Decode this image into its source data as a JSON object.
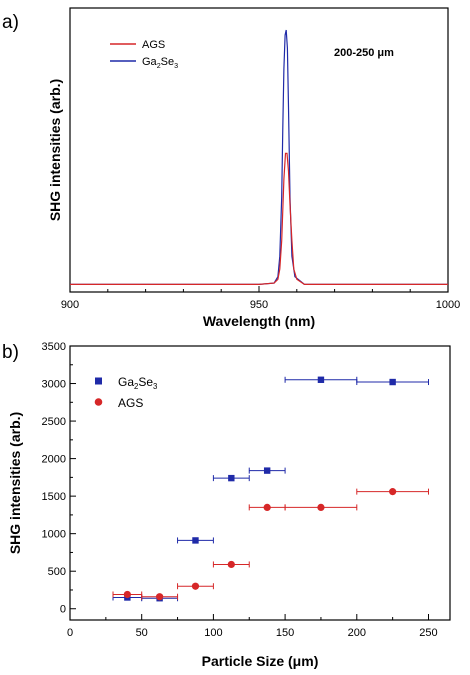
{
  "chart_data": [
    {
      "panel": "a)",
      "type": "line",
      "xlabel": "Wavelength (nm)",
      "ylabel": "SHG intensities (arb.)",
      "xlim": [
        900,
        1000
      ],
      "xticks": [
        "900",
        "950",
        "1000"
      ],
      "yticks": [],
      "annotation": "200-250 μm",
      "legend_position": "top-left",
      "colors": {
        "AGS": "#d62728",
        "Ga2Se3": "#1f2aa8"
      },
      "series": [
        {
          "name": "AGS",
          "legend_parts": [
            "AGS"
          ],
          "x": [
            900,
            950,
            954,
            955,
            955.5,
            956,
            956.3,
            956.6,
            957,
            957.4,
            957.8,
            958.2,
            958.7,
            959.2,
            960,
            962,
            1000
          ],
          "y": [
            0.01,
            0.01,
            0.015,
            0.03,
            0.07,
            0.18,
            0.3,
            0.42,
            0.52,
            0.52,
            0.45,
            0.32,
            0.18,
            0.07,
            0.03,
            0.01,
            0.01
          ]
        },
        {
          "name": "Ga2Se3",
          "legend_parts": [
            "Ga",
            "2",
            "Se",
            "3"
          ],
          "x": [
            900,
            950,
            954,
            955,
            955.5,
            956,
            956.3,
            956.6,
            956.9,
            957.2,
            957.5,
            957.8,
            958.2,
            958.7,
            959.5,
            962,
            1000
          ],
          "y": [
            0.01,
            0.01,
            0.015,
            0.04,
            0.12,
            0.35,
            0.62,
            0.85,
            0.98,
            1.0,
            0.93,
            0.7,
            0.35,
            0.12,
            0.04,
            0.01,
            0.01
          ]
        }
      ]
    },
    {
      "panel": "b)",
      "type": "scatter",
      "xlabel": "Particle Size (μm)",
      "ylabel": "SHG intensities (arb.)",
      "xlim": [
        0,
        265
      ],
      "ylim": [
        -150,
        3500
      ],
      "xticks": [
        0,
        50,
        100,
        150,
        200,
        250
      ],
      "yticks": [
        0,
        500,
        1000,
        1500,
        2000,
        2500,
        3000,
        3500
      ],
      "legend_position": "top-left",
      "colors": {
        "Ga2Se3": "#1f2aa8",
        "AGS": "#d62728"
      },
      "series": [
        {
          "name": "Ga2Se3",
          "legend_parts": [
            "Ga",
            "2",
            "Se",
            "3"
          ],
          "marker": "square",
          "x": [
            40,
            62.5,
            87.5,
            112.5,
            137.5,
            175,
            225
          ],
          "xerr": [
            10,
            12.5,
            12.5,
            12.5,
            12.5,
            25,
            25
          ],
          "y": [
            150,
            140,
            910,
            1740,
            1840,
            3050,
            3020
          ]
        },
        {
          "name": "AGS",
          "legend_parts": [
            "AGS"
          ],
          "marker": "circle",
          "x": [
            40,
            62.5,
            87.5,
            112.5,
            137.5,
            175,
            225
          ],
          "xerr": [
            10,
            12.5,
            12.5,
            12.5,
            12.5,
            25,
            25
          ],
          "y": [
            190,
            160,
            300,
            590,
            1350,
            1350,
            1560
          ]
        }
      ]
    }
  ]
}
